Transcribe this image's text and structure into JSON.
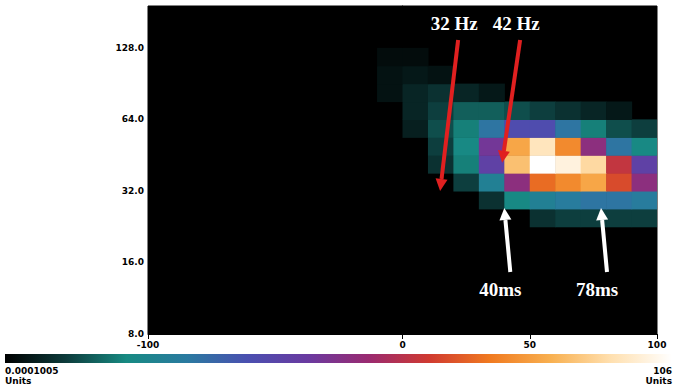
{
  "chart_data": {
    "type": "heatmap",
    "log": "y",
    "grid": false,
    "xlim": [
      -100,
      100
    ],
    "xticks": [
      -100,
      0,
      50,
      100
    ],
    "ylim": [
      8,
      192
    ],
    "yticks": [
      {
        "value": 8,
        "label": "8.0"
      },
      {
        "value": 16,
        "label": "16.0"
      },
      {
        "value": 32,
        "label": "32.0"
      },
      {
        "value": 64,
        "label": "64.0"
      },
      {
        "value": 128,
        "label": "128.0"
      }
    ],
    "x_edges": [
      -100,
      -90,
      -80,
      -70,
      -60,
      -50,
      -40,
      -30,
      -20,
      -10,
      0,
      10,
      20,
      30,
      40,
      50,
      60,
      70,
      80,
      90,
      100
    ],
    "y_edges": [
      8,
      9.51,
      11.31,
      13.45,
      16,
      19.03,
      22.63,
      26.91,
      32,
      38.05,
      45.25,
      53.82,
      64,
      76.11,
      90.51,
      107.63,
      128,
      152.22,
      181.02
    ],
    "z": [
      [
        null,
        null,
        null,
        null,
        null,
        null,
        null,
        null,
        null,
        null,
        null,
        null,
        null,
        null,
        null,
        null,
        null,
        null,
        null,
        null
      ],
      [
        null,
        null,
        null,
        null,
        null,
        null,
        null,
        null,
        null,
        null,
        null,
        null,
        null,
        null,
        null,
        null,
        null,
        null,
        null,
        null
      ],
      [
        null,
        null,
        null,
        null,
        null,
        null,
        null,
        null,
        null,
        null,
        null,
        null,
        null,
        null,
        null,
        null,
        null,
        null,
        null,
        null
      ],
      [
        null,
        null,
        null,
        null,
        null,
        null,
        null,
        null,
        null,
        null,
        null,
        null,
        null,
        null,
        null,
        null,
        null,
        null,
        null,
        null
      ],
      [
        null,
        null,
        null,
        null,
        null,
        null,
        null,
        null,
        null,
        null,
        null,
        null,
        null,
        null,
        null,
        null,
        null,
        null,
        null,
        null
      ],
      [
        null,
        null,
        null,
        null,
        null,
        null,
        null,
        null,
        null,
        null,
        null,
        null,
        null,
        null,
        null,
        null,
        null,
        null,
        null,
        null
      ],
      [
        null,
        null,
        null,
        null,
        null,
        null,
        null,
        null,
        null,
        null,
        null,
        null,
        null,
        null,
        null,
        8,
        10,
        10,
        10,
        10
      ],
      [
        null,
        null,
        null,
        null,
        null,
        null,
        null,
        null,
        null,
        null,
        null,
        null,
        null,
        8,
        20,
        25,
        28,
        30,
        30,
        28
      ],
      [
        null,
        null,
        null,
        null,
        null,
        null,
        null,
        null,
        null,
        null,
        null,
        null,
        10,
        25,
        55,
        75,
        80,
        85,
        70,
        55
      ],
      [
        null,
        null,
        null,
        null,
        null,
        null,
        null,
        null,
        null,
        null,
        null,
        8,
        18,
        45,
        90,
        106,
        102,
        95,
        65,
        45
      ],
      [
        null,
        null,
        null,
        null,
        null,
        null,
        null,
        null,
        null,
        null,
        null,
        10,
        20,
        50,
        85,
        98,
        80,
        55,
        30,
        20
      ],
      [
        null,
        null,
        null,
        null,
        null,
        null,
        null,
        null,
        null,
        null,
        5,
        12,
        18,
        30,
        40,
        40,
        30,
        18,
        12,
        10
      ],
      [
        null,
        null,
        null,
        null,
        null,
        null,
        null,
        null,
        null,
        null,
        6,
        10,
        14,
        14,
        12,
        10,
        8,
        6,
        4,
        null
      ],
      [
        null,
        null,
        null,
        null,
        null,
        null,
        null,
        null,
        null,
        3,
        6,
        8,
        6,
        4,
        null,
        null,
        null,
        null,
        null,
        null
      ],
      [
        null,
        null,
        null,
        null,
        null,
        null,
        null,
        null,
        null,
        3,
        4,
        3,
        null,
        null,
        null,
        null,
        null,
        null,
        null,
        null
      ],
      [
        null,
        null,
        null,
        null,
        null,
        null,
        null,
        null,
        null,
        2,
        2,
        null,
        null,
        null,
        null,
        null,
        null,
        null,
        null,
        null
      ],
      [
        null,
        null,
        null,
        null,
        null,
        null,
        null,
        null,
        null,
        null,
        null,
        null,
        null,
        null,
        null,
        null,
        null,
        null,
        null,
        null
      ],
      [
        null,
        null,
        null,
        null,
        null,
        null,
        null,
        null,
        null,
        null,
        null,
        null,
        null,
        null,
        null,
        null,
        null,
        null,
        null,
        null
      ]
    ],
    "colorbar": {
      "range": [
        0.0001005,
        106
      ],
      "ticks": [
        0.0001005,
        106
      ],
      "unit": "Units"
    },
    "annotations": [
      {
        "text": "32 Hz",
        "y": 32
      },
      {
        "text": "42 Hz",
        "y": 42
      },
      {
        "text": "40ms",
        "x": 40
      },
      {
        "text": "78ms",
        "x": 78
      }
    ]
  }
}
